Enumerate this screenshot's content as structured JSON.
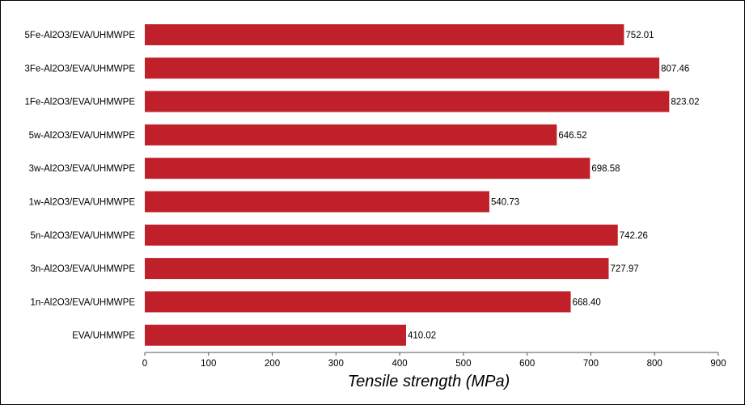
{
  "chart_data": {
    "type": "bar",
    "orientation": "horizontal",
    "categories": [
      "5Fe-Al2O3/EVA/UHMWPE",
      "3Fe-Al2O3/EVA/UHMWPE",
      "1Fe-Al2O3/EVA/UHMWPE",
      "5w-Al2O3/EVA/UHMWPE",
      "3w-Al2O3/EVA/UHMWPE",
      "1w-Al2O3/EVA/UHMWPE",
      "5n-Al2O3/EVA/UHMWPE",
      "3n-Al2O3/EVA/UHMWPE",
      "1n-Al2O3/EVA/UHMWPE",
      "EVA/UHMWPE"
    ],
    "values": [
      752.01,
      807.46,
      823.02,
      646.52,
      698.58,
      540.73,
      742.26,
      727.97,
      668.4,
      410.02
    ],
    "value_labels": [
      "752.01",
      "807.46",
      "823.02",
      "646.52",
      "698.58",
      "540.73",
      "742.26",
      "727.97",
      "668.40",
      "410.02"
    ],
    "xlabel": "Tensile strength (MPa)",
    "ylabel": "",
    "title": "",
    "xlim": [
      0,
      900
    ],
    "xticks": [
      "0",
      "100",
      "200",
      "300",
      "400",
      "500",
      "600",
      "700",
      "800",
      "900"
    ],
    "grid": false,
    "bar_color": "#c0202a"
  }
}
